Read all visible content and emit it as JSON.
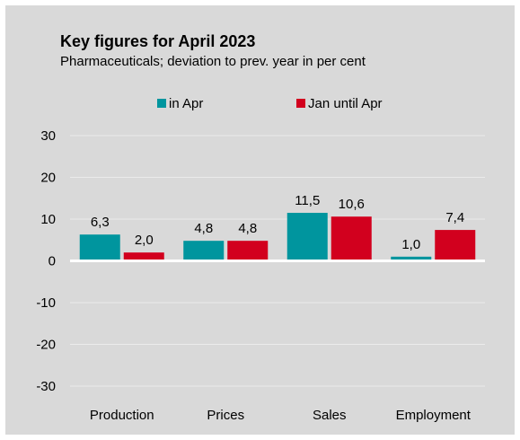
{
  "chart_data": {
    "type": "bar",
    "title": "Key figures for April 2023",
    "subtitle": "Pharmaceuticals; deviation to prev. year in per cent",
    "categories": [
      "Production",
      "Prices",
      "Sales",
      "Employment"
    ],
    "series": [
      {
        "name": "in Apr",
        "values": [
          6.3,
          4.8,
          11.5,
          1.0
        ],
        "labels": [
          "6,3",
          "4,8",
          "11,5",
          "1,0"
        ],
        "color": "#00959e"
      },
      {
        "name": "Jan until Apr",
        "values": [
          2.0,
          4.8,
          10.6,
          7.4
        ],
        "labels": [
          "2,0",
          "4,8",
          "10,6",
          "7,4"
        ],
        "color": "#d2001e"
      }
    ],
    "ylim": [
      -30,
      30
    ],
    "yticks": [
      30,
      20,
      10,
      0,
      -10,
      -20,
      -30
    ],
    "ytick_labels": [
      "30",
      "20",
      "10",
      "0",
      "-10",
      "-20",
      "-30"
    ],
    "grid": true,
    "legend": "top-center",
    "background": "#d9d9d9"
  }
}
